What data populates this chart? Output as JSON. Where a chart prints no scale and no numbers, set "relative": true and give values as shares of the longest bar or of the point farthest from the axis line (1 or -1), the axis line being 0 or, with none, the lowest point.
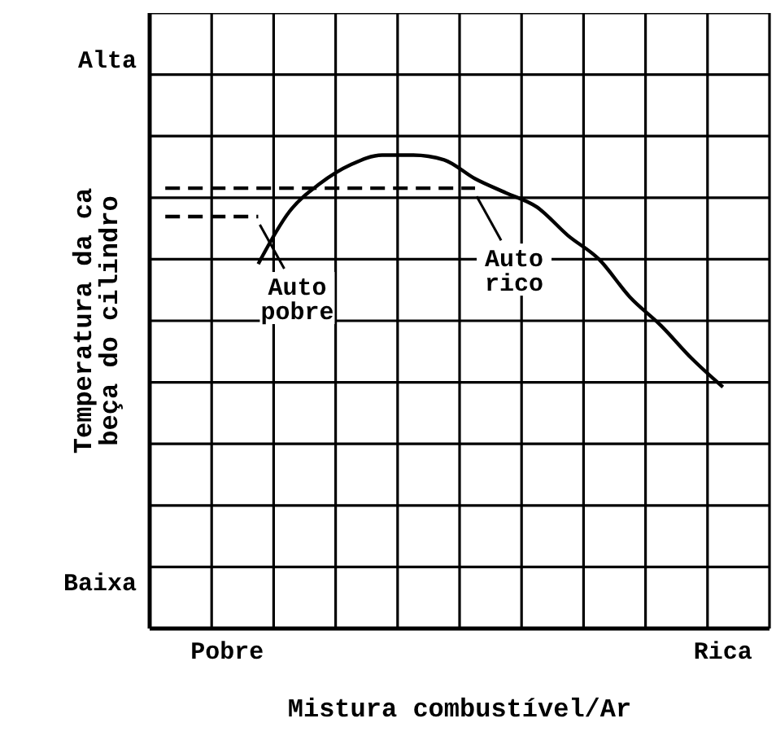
{
  "chart_data": {
    "type": "line",
    "relative": true,
    "xlabel": "Mistura combustível/Ar",
    "ylabel": "Temperatura da ca\nbeça do cilindro",
    "categories": [
      null,
      null,
      "Pobre",
      null,
      null,
      null,
      null,
      null,
      null,
      null,
      null,
      null,
      null,
      null,
      null,
      null,
      null,
      null,
      "Rica",
      null
    ],
    "grid": true,
    "marker": "none",
    "series": [
      {
        "color": "#000000",
        "line_style": "solid",
        "values": [
          null,
          null,
          null,
          0.77,
          0.88,
          0.94,
          0.98,
          1.0,
          1.0,
          0.99,
          0.95,
          0.92,
          0.89,
          0.83,
          0.78,
          0.7,
          0.64,
          0.57,
          0.51,
          null
        ]
      },
      {
        "color": "#000000",
        "line_style": "dashed",
        "values": [
          0.93,
          0.93,
          0.93,
          0.93,
          0.93,
          0.93,
          0.93,
          0.93,
          0.93,
          0.93,
          0.93,
          null,
          null,
          null,
          null,
          null,
          null,
          null,
          null,
          null
        ]
      },
      {
        "color": "#000000",
        "line_style": "dashed",
        "values": [
          0.87,
          0.87,
          0.87,
          0.87,
          null,
          null,
          null,
          null,
          null,
          null,
          null,
          null,
          null,
          null,
          null,
          null,
          null,
          null,
          null,
          null
        ]
      }
    ],
    "annotations": [
      "Alta",
      "Baixa",
      {
        "text": "Auto rico",
        "y": 0.93
      },
      {
        "text": "Auto pobre",
        "y": 0.87
      }
    ]
  }
}
